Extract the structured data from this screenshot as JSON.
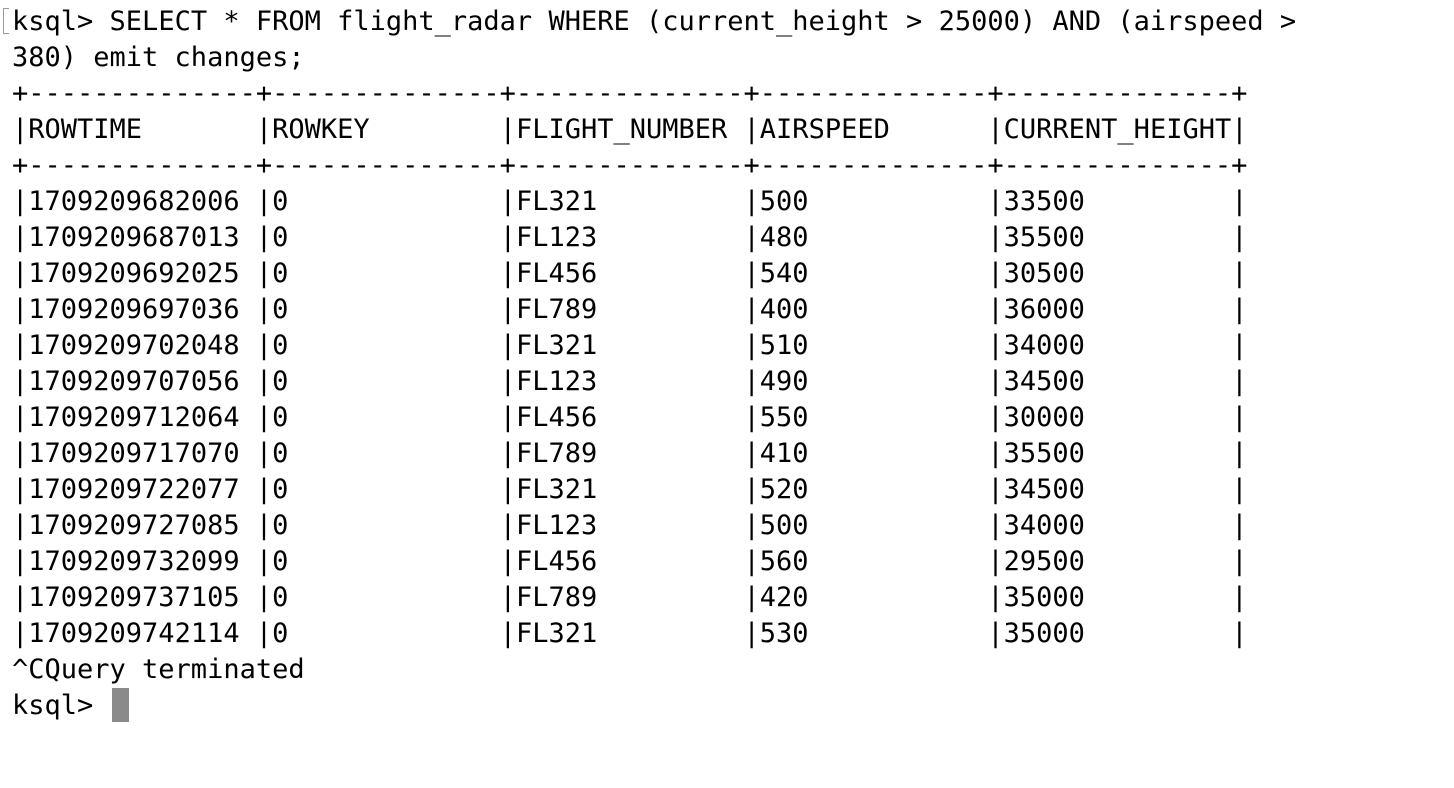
{
  "terminal": {
    "prompt": "ksql>",
    "command_line_1": "SELECT * FROM flight_radar WHERE (current_height > 25000) AND (airspeed >",
    "command_line_2": "380) emit changes;",
    "table": {
      "columns": [
        "ROWTIME",
        "ROWKEY",
        "FLIGHT_NUMBER",
        "AIRSPEED",
        "CURRENT_HEIGHT"
      ],
      "rows": [
        [
          "1709209682006",
          "0",
          "FL321",
          "500",
          "33500"
        ],
        [
          "1709209687013",
          "0",
          "FL123",
          "480",
          "35500"
        ],
        [
          "1709209692025",
          "0",
          "FL456",
          "540",
          "30500"
        ],
        [
          "1709209697036",
          "0",
          "FL789",
          "400",
          "36000"
        ],
        [
          "1709209702048",
          "0",
          "FL321",
          "510",
          "34000"
        ],
        [
          "1709209707056",
          "0",
          "FL123",
          "490",
          "34500"
        ],
        [
          "1709209712064",
          "0",
          "FL456",
          "550",
          "30000"
        ],
        [
          "1709209717070",
          "0",
          "FL789",
          "410",
          "35500"
        ],
        [
          "1709209722077",
          "0",
          "FL321",
          "520",
          "34500"
        ],
        [
          "1709209727085",
          "0",
          "FL123",
          "500",
          "34000"
        ],
        [
          "1709209732099",
          "0",
          "FL456",
          "560",
          "29500"
        ],
        [
          "1709209737105",
          "0",
          "FL789",
          "420",
          "35000"
        ],
        [
          "1709209742114",
          "0",
          "FL321",
          "530",
          "35000"
        ]
      ]
    },
    "termination_message": "^CQuery terminated",
    "final_prompt": "ksql>"
  }
}
